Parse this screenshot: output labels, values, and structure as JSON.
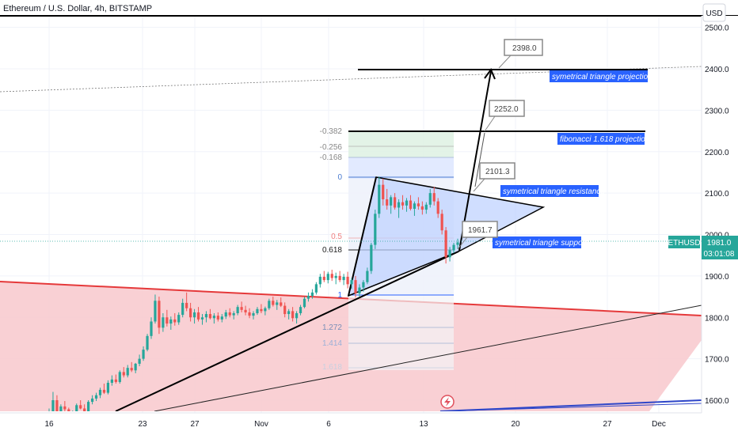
{
  "header": {
    "symbol_title": "Ethereum / U.S. Dollar, 4h, BITSTAMP"
  },
  "price_scale": {
    "currency_button": "USD",
    "ticks": [
      "1600.0",
      "1700.0",
      "1800.0",
      "1900.0",
      "2000.0",
      "2100.0",
      "2200.0",
      "2300.0",
      "2400.0",
      "2500.0"
    ],
    "symbol_tag": "ETHUSD",
    "last_price": "1981.0",
    "countdown": "03:01:08"
  },
  "time_scale": {
    "ticks": [
      "16",
      "23",
      "27",
      "Nov",
      "6",
      "13",
      "20",
      "27",
      "Dec"
    ]
  },
  "fibonacci": {
    "levels": [
      "-0.382",
      "-0.256",
      "-0.168",
      "0",
      "0.5",
      "0.618",
      "1",
      "1.272",
      "1.414",
      "1.618"
    ]
  },
  "annotations": {
    "triangle_projection": "symetrical triangle projection",
    "fib_projection": "fibonacci 1.618 projection",
    "triangle_resistance": "symetrical triangle resistance",
    "triangle_support": "symetrical triangle support",
    "callout_2398": "2398.0",
    "callout_2252": "2252.0",
    "callout_2101": "2101.3",
    "callout_1961": "1961.7"
  },
  "colors": {
    "bull": "#26a69a",
    "bear": "#ef5350",
    "label_bg": "#2962ff",
    "red_zone": "#f8c8cc",
    "triangle_fill": "#cfdcff"
  },
  "chart_data": {
    "type": "candlestick",
    "x_start": "Oct 12",
    "x_end": "Dec 3",
    "ylim": [
      1560,
      2510
    ],
    "ohlc_4h": [
      [
        1560,
        1580,
        1552,
        1572
      ],
      [
        1572,
        1620,
        1568,
        1600
      ],
      [
        1600,
        1612,
        1560,
        1570
      ],
      [
        1570,
        1590,
        1548,
        1585
      ],
      [
        1585,
        1598,
        1570,
        1578
      ],
      [
        1578,
        1582,
        1552,
        1560
      ],
      [
        1560,
        1575,
        1550,
        1570
      ],
      [
        1570,
        1592,
        1565,
        1588
      ],
      [
        1588,
        1600,
        1578,
        1580
      ],
      [
        1580,
        1590,
        1560,
        1566
      ],
      [
        1566,
        1600,
        1562,
        1596
      ],
      [
        1596,
        1612,
        1590,
        1604
      ],
      [
        1604,
        1618,
        1598,
        1612
      ],
      [
        1612,
        1630,
        1605,
        1625
      ],
      [
        1625,
        1640,
        1615,
        1618
      ],
      [
        1618,
        1648,
        1614,
        1642
      ],
      [
        1642,
        1660,
        1635,
        1650
      ],
      [
        1650,
        1662,
        1640,
        1644
      ],
      [
        1644,
        1672,
        1640,
        1668
      ],
      [
        1668,
        1680,
        1655,
        1660
      ],
      [
        1660,
        1685,
        1655,
        1678
      ],
      [
        1678,
        1692,
        1668,
        1672
      ],
      [
        1672,
        1690,
        1665,
        1688
      ],
      [
        1688,
        1710,
        1682,
        1700
      ],
      [
        1700,
        1730,
        1695,
        1722
      ],
      [
        1722,
        1760,
        1718,
        1755
      ],
      [
        1755,
        1800,
        1748,
        1790
      ],
      [
        1790,
        1855,
        1785,
        1840
      ],
      [
        1840,
        1850,
        1760,
        1775
      ],
      [
        1775,
        1810,
        1765,
        1800
      ],
      [
        1800,
        1818,
        1778,
        1785
      ],
      [
        1785,
        1802,
        1770,
        1795
      ],
      [
        1795,
        1810,
        1780,
        1788
      ],
      [
        1788,
        1812,
        1782,
        1806
      ],
      [
        1806,
        1845,
        1800,
        1835
      ],
      [
        1835,
        1860,
        1815,
        1822
      ],
      [
        1822,
        1835,
        1790,
        1800
      ],
      [
        1800,
        1820,
        1785,
        1812
      ],
      [
        1812,
        1825,
        1790,
        1795
      ],
      [
        1795,
        1808,
        1782,
        1800
      ],
      [
        1800,
        1815,
        1788,
        1808
      ],
      [
        1808,
        1820,
        1795,
        1798
      ],
      [
        1798,
        1810,
        1785,
        1804
      ],
      [
        1804,
        1812,
        1790,
        1795
      ],
      [
        1795,
        1808,
        1788,
        1802
      ],
      [
        1802,
        1818,
        1796,
        1812
      ],
      [
        1812,
        1822,
        1800,
        1805
      ],
      [
        1805,
        1815,
        1795,
        1810
      ],
      [
        1810,
        1830,
        1805,
        1825
      ],
      [
        1825,
        1838,
        1812,
        1818
      ],
      [
        1818,
        1828,
        1805,
        1812
      ],
      [
        1812,
        1822,
        1798,
        1804
      ],
      [
        1804,
        1815,
        1795,
        1810
      ],
      [
        1810,
        1825,
        1806,
        1820
      ],
      [
        1820,
        1832,
        1810,
        1815
      ],
      [
        1815,
        1826,
        1805,
        1822
      ],
      [
        1822,
        1845,
        1818,
        1840
      ],
      [
        1840,
        1850,
        1826,
        1830
      ],
      [
        1830,
        1842,
        1818,
        1836
      ],
      [
        1836,
        1848,
        1825,
        1828
      ],
      [
        1828,
        1836,
        1800,
        1808
      ],
      [
        1808,
        1820,
        1795,
        1815
      ],
      [
        1815,
        1825,
        1790,
        1798
      ],
      [
        1798,
        1815,
        1785,
        1810
      ],
      [
        1810,
        1830,
        1805,
        1825
      ],
      [
        1825,
        1850,
        1822,
        1845
      ],
      [
        1845,
        1860,
        1838,
        1852
      ],
      [
        1852,
        1868,
        1845,
        1860
      ],
      [
        1860,
        1885,
        1855,
        1880
      ],
      [
        1880,
        1905,
        1872,
        1898
      ],
      [
        1898,
        1912,
        1885,
        1890
      ],
      [
        1890,
        1910,
        1882,
        1905
      ],
      [
        1905,
        1915,
        1888,
        1895
      ],
      [
        1895,
        1908,
        1880,
        1900
      ],
      [
        1900,
        1912,
        1885,
        1890
      ],
      [
        1890,
        1905,
        1878,
        1898
      ],
      [
        1898,
        1910,
        1870,
        1880
      ],
      [
        1880,
        1895,
        1868,
        1890
      ],
      [
        1890,
        1900,
        1848,
        1858
      ],
      [
        1858,
        1880,
        1850,
        1872
      ],
      [
        1872,
        1890,
        1862,
        1885
      ],
      [
        1885,
        1920,
        1880,
        1912
      ],
      [
        1912,
        1980,
        1905,
        1975
      ],
      [
        1975,
        2060,
        1965,
        2050
      ],
      [
        2050,
        2140,
        2040,
        2120
      ],
      [
        2120,
        2135,
        2070,
        2085
      ],
      [
        2085,
        2110,
        2060,
        2070
      ],
      [
        2070,
        2095,
        2050,
        2090
      ],
      [
        2090,
        2100,
        2060,
        2065
      ],
      [
        2065,
        2085,
        2040,
        2078
      ],
      [
        2078,
        2095,
        2060,
        2070
      ],
      [
        2070,
        2088,
        2055,
        2082
      ],
      [
        2082,
        2095,
        2058,
        2062
      ],
      [
        2062,
        2080,
        2045,
        2075
      ],
      [
        2075,
        2090,
        2060,
        2068
      ],
      [
        2068,
        2080,
        2048,
        2060
      ],
      [
        2060,
        2078,
        2050,
        2072
      ],
      [
        2072,
        2110,
        2065,
        2100
      ],
      [
        2100,
        2115,
        2070,
        2080
      ],
      [
        2080,
        2088,
        2040,
        2050
      ],
      [
        2050,
        2060,
        2000,
        2010
      ],
      [
        2010,
        2018,
        1930,
        1945
      ],
      [
        1945,
        1970,
        1935,
        1962
      ],
      [
        1962,
        1980,
        1955,
        1975
      ],
      [
        1975,
        1990,
        1965,
        1981
      ]
    ]
  }
}
